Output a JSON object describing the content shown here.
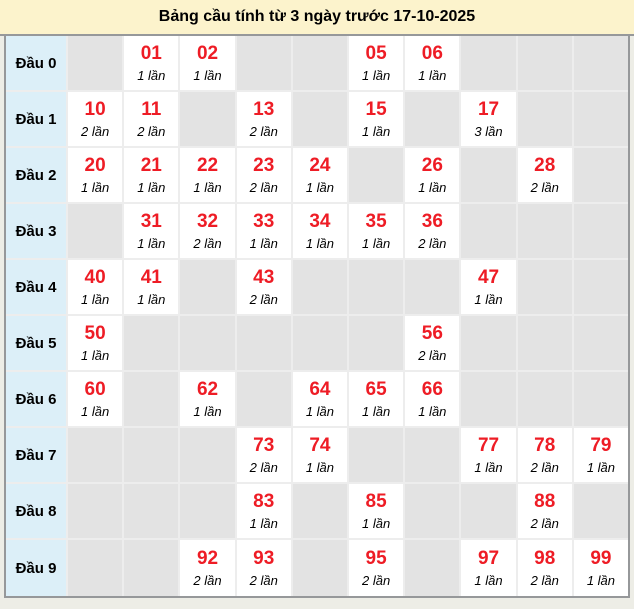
{
  "title": "Bảng cầu tính từ 3 ngày trước 17-10-2025",
  "colors": {
    "title_bg": "#FCF3CC",
    "row_label_bg": "#DCEFF8",
    "empty_cell_bg": "#E3E3E3",
    "filled_cell_bg": "#FFFFFF",
    "number_color": "#EE1C25",
    "outer_border": "#96989A",
    "grid_line": "#EDEDED"
  },
  "table": {
    "rows": [
      {
        "label": "Đầu 0",
        "cells": [
          null,
          {
            "number": "01",
            "count": "1 lần"
          },
          {
            "number": "02",
            "count": "1 lần"
          },
          null,
          null,
          {
            "number": "05",
            "count": "1 lần"
          },
          {
            "number": "06",
            "count": "1 lần"
          },
          null,
          null,
          null
        ]
      },
      {
        "label": "Đầu 1",
        "cells": [
          {
            "number": "10",
            "count": "2 lần"
          },
          {
            "number": "11",
            "count": "2 lần"
          },
          null,
          {
            "number": "13",
            "count": "2 lần"
          },
          null,
          {
            "number": "15",
            "count": "1 lần"
          },
          null,
          {
            "number": "17",
            "count": "3 lần"
          },
          null,
          null
        ]
      },
      {
        "label": "Đầu 2",
        "cells": [
          {
            "number": "20",
            "count": "1 lần"
          },
          {
            "number": "21",
            "count": "1 lần"
          },
          {
            "number": "22",
            "count": "1 lần"
          },
          {
            "number": "23",
            "count": "2 lần"
          },
          {
            "number": "24",
            "count": "1 lần"
          },
          null,
          {
            "number": "26",
            "count": "1 lần"
          },
          null,
          {
            "number": "28",
            "count": "2 lần"
          },
          null
        ]
      },
      {
        "label": "Đầu 3",
        "cells": [
          null,
          {
            "number": "31",
            "count": "1 lần"
          },
          {
            "number": "32",
            "count": "2 lần"
          },
          {
            "number": "33",
            "count": "1 lần"
          },
          {
            "number": "34",
            "count": "1 lần"
          },
          {
            "number": "35",
            "count": "1 lần"
          },
          {
            "number": "36",
            "count": "2 lần"
          },
          null,
          null,
          null
        ]
      },
      {
        "label": "Đầu 4",
        "cells": [
          {
            "number": "40",
            "count": "1 lần"
          },
          {
            "number": "41",
            "count": "1 lần"
          },
          null,
          {
            "number": "43",
            "count": "2 lần"
          },
          null,
          null,
          null,
          {
            "number": "47",
            "count": "1 lần"
          },
          null,
          null
        ]
      },
      {
        "label": "Đầu 5",
        "cells": [
          {
            "number": "50",
            "count": "1 lần"
          },
          null,
          null,
          null,
          null,
          null,
          {
            "number": "56",
            "count": "2 lần"
          },
          null,
          null,
          null
        ]
      },
      {
        "label": "Đầu 6",
        "cells": [
          {
            "number": "60",
            "count": "1 lần"
          },
          null,
          {
            "number": "62",
            "count": "1 lần"
          },
          null,
          {
            "number": "64",
            "count": "1 lần"
          },
          {
            "number": "65",
            "count": "1 lần"
          },
          {
            "number": "66",
            "count": "1 lần"
          },
          null,
          null,
          null
        ]
      },
      {
        "label": "Đầu 7",
        "cells": [
          null,
          null,
          null,
          {
            "number": "73",
            "count": "2 lần"
          },
          {
            "number": "74",
            "count": "1 lần"
          },
          null,
          null,
          {
            "number": "77",
            "count": "1 lần"
          },
          {
            "number": "78",
            "count": "2 lần"
          },
          {
            "number": "79",
            "count": "1 lần"
          }
        ]
      },
      {
        "label": "Đầu 8",
        "cells": [
          null,
          null,
          null,
          {
            "number": "83",
            "count": "1 lần"
          },
          null,
          {
            "number": "85",
            "count": "1 lần"
          },
          null,
          null,
          {
            "number": "88",
            "count": "2 lần"
          },
          null
        ]
      },
      {
        "label": "Đầu 9",
        "cells": [
          null,
          null,
          {
            "number": "92",
            "count": "2 lần"
          },
          {
            "number": "93",
            "count": "2 lần"
          },
          null,
          {
            "number": "95",
            "count": "2 lần"
          },
          null,
          {
            "number": "97",
            "count": "1 lần"
          },
          {
            "number": "98",
            "count": "2 lần"
          },
          {
            "number": "99",
            "count": "1 lần"
          }
        ]
      }
    ]
  }
}
